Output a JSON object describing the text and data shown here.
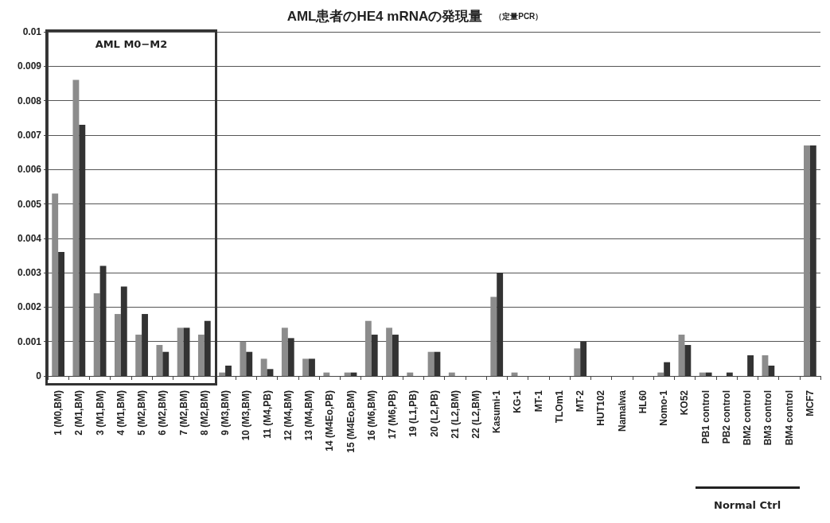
{
  "chart_data": {
    "type": "bar",
    "title": "AML患者のHE4 mRNAの発現量",
    "subtitle": "（定量PCR）",
    "categories": [
      "1 (M0,BM)",
      "2 (M1,BM)",
      "3 (M1,BM)",
      "4 (M1,BM)",
      "5 (M2,BM)",
      "6 (M2,BM)",
      "7 (M2,BM)",
      "8 (M2,BM)",
      "9 (M3,BM)",
      "10 (M3,BM)",
      "11 (M4,PB)",
      "12 (M4,BM)",
      "13 (M4,BM)",
      "14 (M4Eo,PB)",
      "15 (M4Eo,BM)",
      "16 (M6,BM)",
      "17 (M6,PB)",
      "19 (L1,PB)",
      "20 (L2,PB)",
      "21 (L2,BM)",
      "22 (L2,BM)",
      "Kasumi-1",
      "KG-1",
      "MT-1",
      "TLOm1",
      "MT-2",
      "HUT102",
      "Namalwa",
      "HL60",
      "Nomo-1",
      "KO52",
      "PB1 control",
      "PB2 control",
      "BM2 control",
      "BM3 control",
      "BM4 control",
      "MCF7"
    ],
    "series": [
      {
        "color": "#8c8c8c",
        "values": [
          0.0053,
          0.0086,
          0.0024,
          0.0018,
          0.0012,
          0.0009,
          0.0014,
          0.0012,
          0.0001,
          0.001,
          0.0005,
          0.0014,
          0.0005,
          0.0001,
          0.0001,
          0.0016,
          0.0014,
          0.0001,
          0.0007,
          0.0001,
          0,
          0.0023,
          0.0001,
          0,
          0,
          0.0008,
          0,
          0,
          0,
          0.0001,
          0.0012,
          0.0001,
          0,
          0,
          0.0006,
          0,
          0.0067
        ]
      },
      {
        "color": "#333333",
        "values": [
          0.0036,
          0.0073,
          0.0032,
          0.0026,
          0.0018,
          0.0007,
          0.0014,
          0.0016,
          0.0003,
          0.0007,
          0.0002,
          0.0011,
          0.0005,
          0,
          0.0001,
          0.0012,
          0.0012,
          0,
          0.0007,
          0,
          0,
          0.003,
          0,
          0,
          0,
          0.001,
          0,
          0,
          0,
          0.0004,
          0.0009,
          0.0001,
          0.0001,
          0.0006,
          0.0003,
          0,
          0.0067
        ]
      }
    ],
    "ylim": [
      0,
      0.01
    ],
    "yticks": [
      0,
      0.001,
      0.002,
      0.003,
      0.004,
      0.005,
      0.006,
      0.007,
      0.008,
      0.009,
      0.01
    ],
    "grid": "y",
    "annotations": [
      "AML M0−M2",
      "Normal Ctrl"
    ]
  }
}
